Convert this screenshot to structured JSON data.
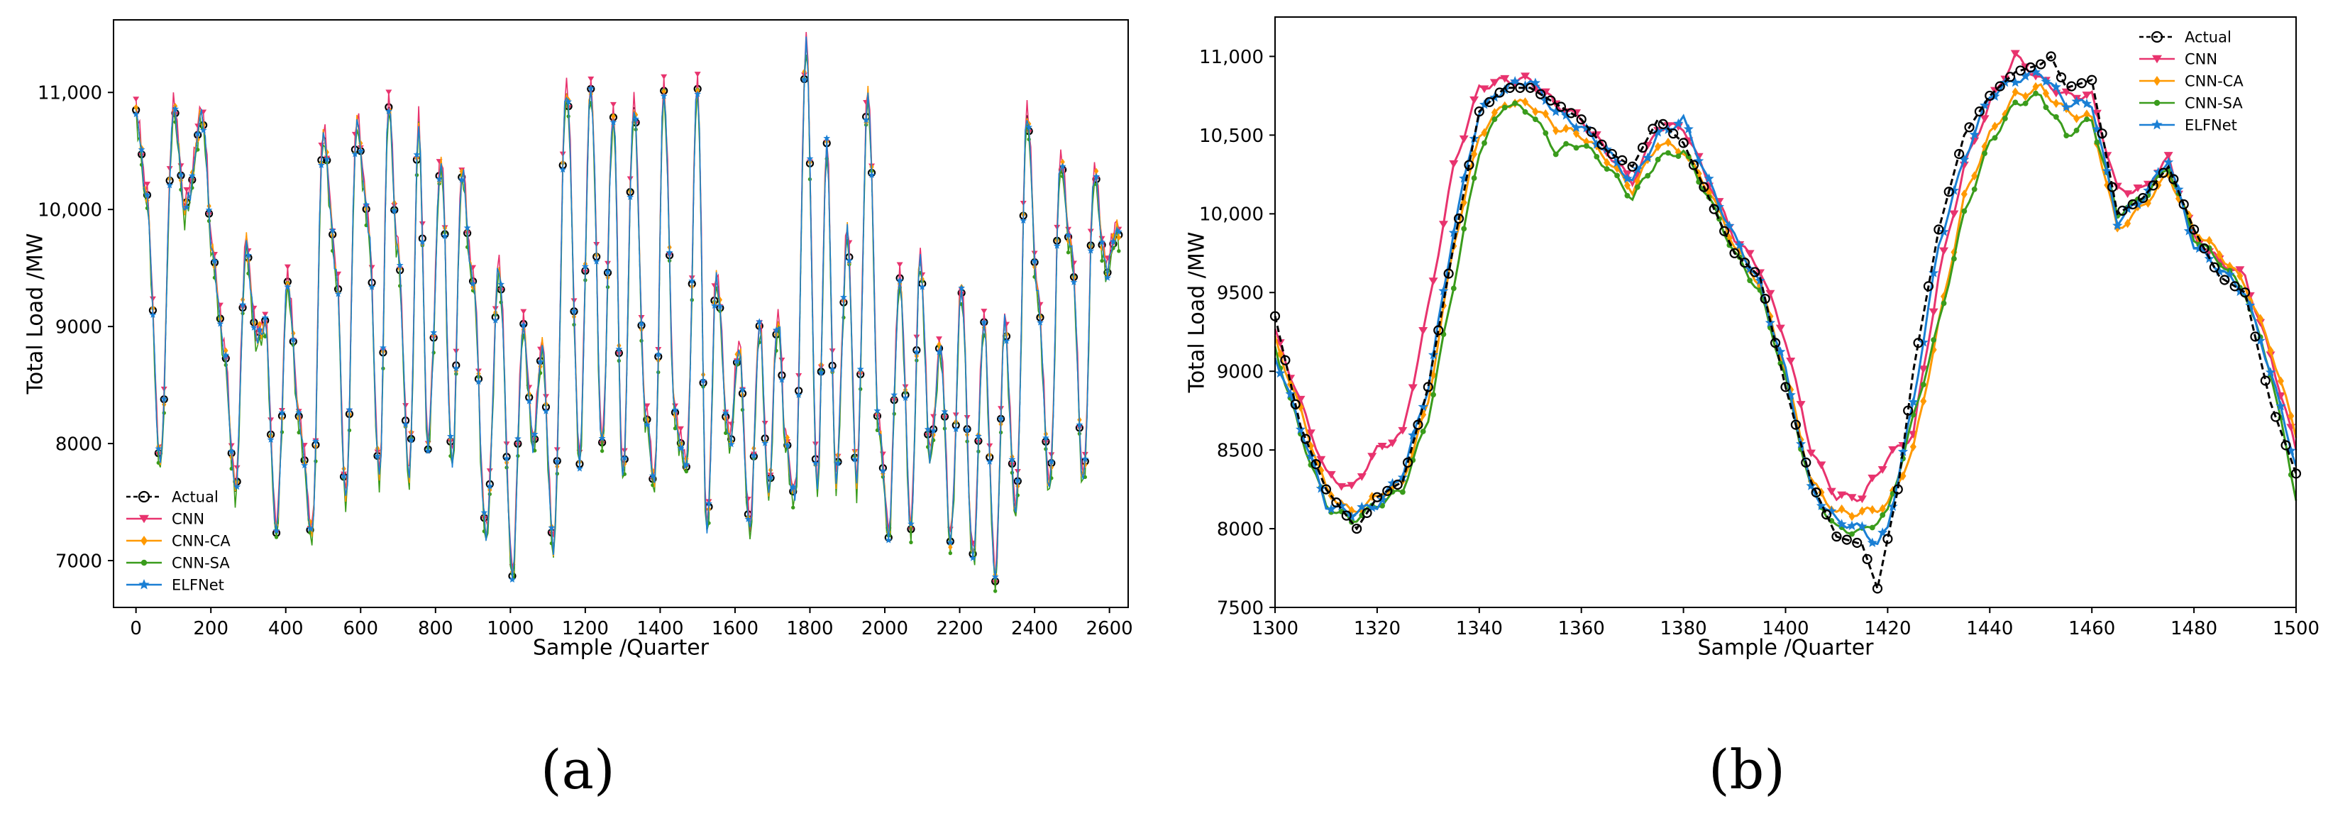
{
  "colors": {
    "actual": "#000000",
    "cnn": "#e8336e",
    "cnn_ca": "#ff9900",
    "cnn_sa": "#3a9c1c",
    "elfnet": "#1a7fd4"
  },
  "chart_data": [
    {
      "type": "line",
      "panel_label": "(a)",
      "title": "",
      "xlabel": "Sample /Quarter",
      "ylabel": "Total Load /MW",
      "xlim": [
        -60,
        2650
      ],
      "ylim": [
        6600,
        11620
      ],
      "xticks": [
        0,
        200,
        400,
        600,
        800,
        1000,
        1200,
        1400,
        1600,
        1800,
        2000,
        2200,
        2400,
        2600
      ],
      "xtick_labels": [
        "0",
        "200",
        "400",
        "600",
        "800",
        "1000",
        "1200",
        "1400",
        "1600",
        "1800",
        "2000",
        "2200",
        "2400",
        "2600"
      ],
      "yticks": [
        7000,
        8000,
        9000,
        10000,
        11000
      ],
      "ytick_labels": [
        "7000",
        "8000",
        "9000",
        "10,000",
        "11,000"
      ],
      "legend_position": "lower-left",
      "legend": [
        "Actual",
        "CNN",
        "CNN-CA",
        "CNN-SA",
        "ELFNet"
      ],
      "actual_anchor_x": [
        0,
        28,
        65,
        100,
        132,
        178,
        205,
        235,
        265,
        295,
        320,
        345,
        375,
        405,
        440,
        470,
        500,
        535,
        560,
        590,
        620,
        650,
        675,
        700,
        730,
        755,
        780,
        815,
        845,
        870,
        900,
        935,
        970,
        1005,
        1035,
        1060,
        1085,
        1115,
        1150,
        1185,
        1215,
        1245,
        1275,
        1300,
        1330,
        1360,
        1385,
        1410,
        1440,
        1470,
        1500,
        1525,
        1550,
        1585,
        1610,
        1640,
        1665,
        1690,
        1715,
        1735,
        1760,
        1790,
        1820,
        1845,
        1870,
        1900,
        1925,
        1955,
        1985,
        2010,
        2040,
        2070,
        2095,
        2120,
        2150,
        2175,
        2205,
        2235,
        2265,
        2295,
        2320,
        2350,
        2380,
        2410,
        2440,
        2470,
        2500,
        2530,
        2560,
        2590,
        2620
      ],
      "actual_anchor_y": [
        10850,
        10100,
        7850,
        10850,
        10000,
        10800,
        9600,
        8800,
        7600,
        9700,
        8900,
        9000,
        7250,
        9350,
        8100,
        7200,
        10650,
        9500,
        7500,
        10750,
        9900,
        7700,
        10900,
        9600,
        7700,
        10700,
        8000,
        10400,
        7800,
        10300,
        9400,
        7200,
        9500,
        6900,
        9000,
        8000,
        8800,
        7100,
        11050,
        7900,
        11050,
        8000,
        10850,
        7700,
        10900,
        8300,
        7650,
        11000,
        8200,
        7800,
        11050,
        7200,
        9400,
        8000,
        8800,
        7250,
        9000,
        7600,
        9100,
        8000,
        7500,
        11400,
        7600,
        10500,
        7700,
        9800,
        7700,
        11000,
        8100,
        7250,
        9400,
        7300,
        9600,
        7900,
        8800,
        7150,
        9300,
        7000,
        9000,
        6850,
        9000,
        7400,
        10800,
        9200,
        7600,
        10400,
        9600,
        7650,
        10300,
        9500,
        9800
      ],
      "series_note": "CNN, CNN-CA, CNN-SA and ELFNet closely track Actual at this scale"
    },
    {
      "type": "line",
      "panel_label": "(b)",
      "title": "",
      "xlabel": "Sample /Quarter",
      "ylabel": "Total Load /MW",
      "xlim": [
        1300,
        1500
      ],
      "ylim": [
        7500,
        11250
      ],
      "xticks": [
        1300,
        1320,
        1340,
        1360,
        1380,
        1400,
        1420,
        1440,
        1460,
        1480,
        1500
      ],
      "xtick_labels": [
        "1300",
        "1320",
        "1340",
        "1360",
        "1380",
        "1400",
        "1420",
        "1440",
        "1460",
        "1480",
        "1500"
      ],
      "yticks": [
        7500,
        8000,
        8500,
        9000,
        9500,
        10000,
        10500,
        11000
      ],
      "ytick_labels": [
        "7500",
        "8000",
        "8500",
        "9000",
        "9500",
        "10,000",
        "10,500",
        "11,000"
      ],
      "legend_position": "upper-right",
      "legend": [
        "Actual",
        "CNN",
        "CNN-CA",
        "CNN-SA",
        "ELFNet"
      ],
      "series": [
        {
          "name": "Actual",
          "x": [
            1300,
            1305,
            1310,
            1316,
            1320,
            1325,
            1330,
            1335,
            1340,
            1345,
            1350,
            1355,
            1360,
            1365,
            1370,
            1375,
            1380,
            1385,
            1390,
            1395,
            1400,
            1405,
            1410,
            1415,
            1418,
            1422,
            1425,
            1430,
            1435,
            1440,
            1445,
            1450,
            1452,
            1455,
            1460,
            1465,
            1470,
            1475,
            1480,
            1485,
            1490,
            1495,
            1500
          ],
          "y": [
            9350,
            8650,
            8250,
            8000,
            8200,
            8300,
            8900,
            9800,
            10650,
            10800,
            10800,
            10700,
            10600,
            10400,
            10300,
            10600,
            10450,
            10100,
            9750,
            9600,
            8900,
            8300,
            7950,
            7900,
            7620,
            8250,
            9000,
            9900,
            10500,
            10750,
            10900,
            10950,
            11000,
            10800,
            10850,
            10000,
            10100,
            10300,
            9900,
            9600,
            9500,
            8800,
            8350
          ]
        },
        {
          "name": "CNN",
          "x": [
            1300,
            1305,
            1310,
            1315,
            1320,
            1325,
            1330,
            1335,
            1340,
            1345,
            1350,
            1355,
            1360,
            1365,
            1370,
            1375,
            1380,
            1385,
            1390,
            1395,
            1400,
            1405,
            1410,
            1415,
            1420,
            1425,
            1430,
            1435,
            1440,
            1445,
            1450,
            1455,
            1460,
            1465,
            1470,
            1475,
            1480,
            1485,
            1490,
            1495,
            1500
          ],
          "y": [
            9250,
            8800,
            8350,
            8250,
            8500,
            8600,
            9400,
            10300,
            10800,
            10850,
            10850,
            10700,
            10600,
            10400,
            10200,
            10550,
            10550,
            10200,
            9850,
            9650,
            9200,
            8500,
            8200,
            8200,
            8450,
            8600,
            9600,
            10300,
            10700,
            11000,
            10850,
            10750,
            10750,
            10150,
            10150,
            10350,
            9850,
            9700,
            9600,
            9100,
            8500
          ]
        },
        {
          "name": "CNN-CA",
          "x": [
            1300,
            1305,
            1310,
            1315,
            1320,
            1325,
            1330,
            1335,
            1340,
            1345,
            1350,
            1355,
            1360,
            1365,
            1370,
            1375,
            1380,
            1385,
            1390,
            1395,
            1400,
            1405,
            1410,
            1415,
            1420,
            1425,
            1430,
            1435,
            1440,
            1445,
            1450,
            1455,
            1460,
            1465,
            1470,
            1475,
            1480,
            1485,
            1490,
            1495,
            1500
          ],
          "y": [
            9200,
            8750,
            8250,
            8100,
            8200,
            8300,
            8800,
            9800,
            10500,
            10700,
            10700,
            10550,
            10500,
            10350,
            10150,
            10450,
            10400,
            10150,
            9800,
            9550,
            9000,
            8300,
            8100,
            8100,
            8150,
            8500,
            9300,
            10100,
            10500,
            10750,
            10800,
            10650,
            10600,
            9900,
            10050,
            10250,
            9900,
            9750,
            9550,
            9150,
            8600
          ]
        },
        {
          "name": "CNN-SA",
          "x": [
            1300,
            1305,
            1310,
            1315,
            1320,
            1325,
            1330,
            1335,
            1340,
            1345,
            1350,
            1355,
            1360,
            1365,
            1370,
            1375,
            1380,
            1385,
            1390,
            1395,
            1400,
            1405,
            1410,
            1415,
            1420,
            1425,
            1430,
            1435,
            1440,
            1445,
            1450,
            1455,
            1460,
            1465,
            1470,
            1475,
            1480,
            1485,
            1490,
            1495,
            1500
          ],
          "y": [
            9150,
            8600,
            8150,
            8050,
            8150,
            8250,
            8700,
            9550,
            10400,
            10700,
            10650,
            10400,
            10450,
            10300,
            10100,
            10350,
            10400,
            10100,
            9750,
            9500,
            8950,
            8250,
            8000,
            7980,
            8100,
            8700,
            9300,
            10000,
            10450,
            10700,
            10750,
            10500,
            10600,
            10000,
            10100,
            10300,
            9850,
            9700,
            9500,
            9000,
            8200
          ]
        },
        {
          "name": "ELFNet",
          "x": [
            1300,
            1305,
            1310,
            1315,
            1320,
            1325,
            1330,
            1335,
            1340,
            1345,
            1350,
            1355,
            1360,
            1365,
            1370,
            1375,
            1380,
            1385,
            1390,
            1395,
            1400,
            1405,
            1410,
            1415,
            1418,
            1420,
            1425,
            1430,
            1435,
            1440,
            1445,
            1450,
            1455,
            1460,
            1465,
            1470,
            1475,
            1480,
            1485,
            1490,
            1495,
            1500
          ],
          "y": [
            9100,
            8650,
            8150,
            8100,
            8150,
            8350,
            8900,
            9900,
            10650,
            10800,
            10850,
            10650,
            10550,
            10400,
            10200,
            10500,
            10600,
            10200,
            9850,
            9550,
            9000,
            8250,
            8050,
            8000,
            7900,
            8000,
            8800,
            9800,
            10350,
            10750,
            10850,
            10900,
            10700,
            10700,
            9950,
            10100,
            10350,
            9800,
            9650,
            9500,
            9000,
            8400
          ]
        }
      ]
    }
  ]
}
